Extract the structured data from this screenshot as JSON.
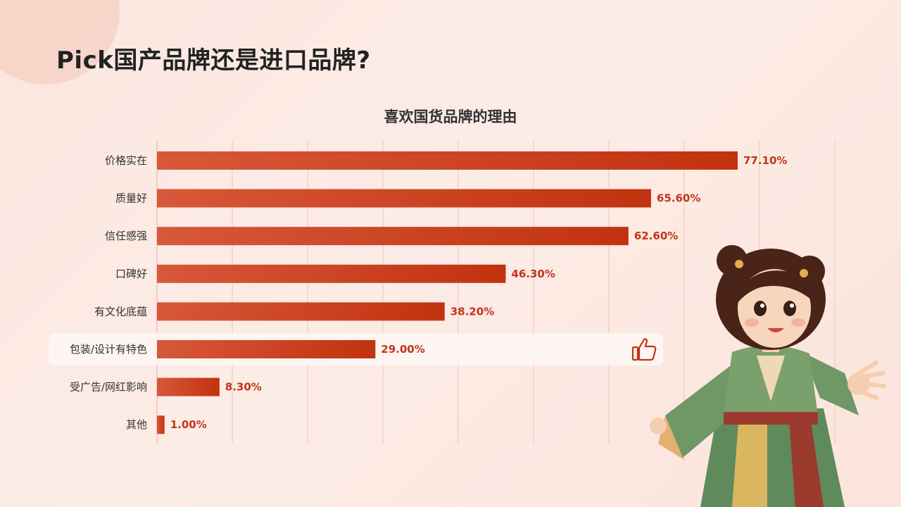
{
  "page": {
    "title": "Pick国产品牌还是进口品牌?"
  },
  "chart_data": {
    "type": "bar",
    "orientation": "horizontal",
    "title": "喜欢国货品牌的理由",
    "categories": [
      "价格实在",
      "质量好",
      "信任感强",
      "口碑好",
      "有文化底蕴",
      "包装/设计有特色",
      "受广告/网红影响",
      "其他"
    ],
    "values": [
      77.1,
      65.6,
      62.6,
      46.3,
      38.2,
      29.0,
      8.3,
      1.0
    ],
    "value_labels": [
      "77.10%",
      "65.60%",
      "62.60%",
      "46.30%",
      "38.20%",
      "29.00%",
      "8.30%",
      "1.00%"
    ],
    "xlim": [
      0,
      90
    ],
    "highlight_index": 5,
    "grid": true,
    "colors": {
      "bar_start": "#d7583a",
      "bar_end": "#c2320f",
      "value_text": "#c0361a",
      "grid": "#f0c3b7",
      "highlight_bg": "#fdf6f3"
    }
  },
  "icons": {
    "highlight_icon": "thumbs-up-icon",
    "illustration": "character-illustration"
  }
}
